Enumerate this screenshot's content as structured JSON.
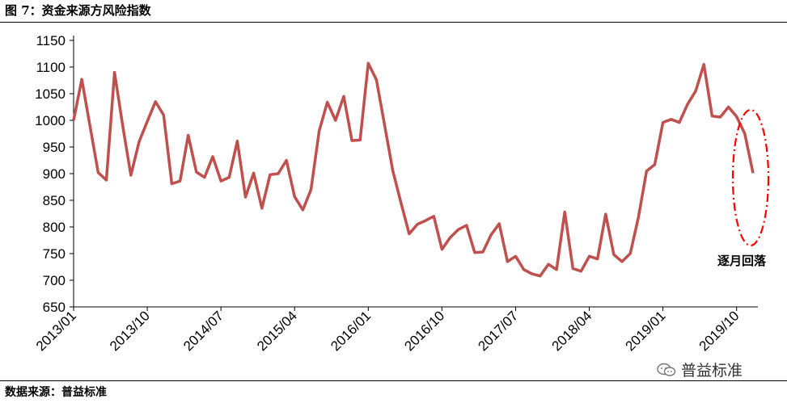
{
  "figure": {
    "title": "图 7：资金来源方风险指数",
    "source": "数据来源：普益标准",
    "watermark": "普益标准"
  },
  "colors": {
    "line": "#c0504d",
    "annotation": "#ff0000",
    "axis": "#000000"
  },
  "chart_data": {
    "type": "line",
    "title": "",
    "xlabel": "",
    "ylabel": "",
    "ylim": [
      650,
      1150
    ],
    "yticks": [
      650,
      700,
      750,
      800,
      850,
      900,
      950,
      1000,
      1050,
      1100,
      1150
    ],
    "xtick_labels": [
      "2013/01",
      "2013/10",
      "2014/07",
      "2015/04",
      "2016/01",
      "2016/10",
      "2017/07",
      "2018/04",
      "2019/01",
      "2019/10"
    ],
    "xtick_positions": [
      0,
      9,
      18,
      27,
      36,
      45,
      54,
      63,
      72,
      81
    ],
    "grid": false,
    "series": [
      {
        "name": "",
        "x_start": "2013/01",
        "frequency": "monthly",
        "values": [
          1000,
          1077,
          990,
          902,
          888,
          1090,
          990,
          897,
          960,
          998,
          1035,
          1010,
          881,
          886,
          972,
          903,
          893,
          932,
          886,
          893,
          961,
          856,
          901,
          835,
          898,
          900,
          925,
          857,
          832,
          870,
          980,
          1034,
          1000,
          1045,
          962,
          963,
          1107,
          1076,
          990,
          905,
          845,
          787,
          805,
          812,
          820,
          758,
          780,
          795,
          803,
          752,
          753,
          785,
          806,
          735,
          745,
          720,
          712,
          708,
          730,
          720,
          828,
          722,
          717,
          745,
          740,
          824,
          748,
          735,
          750,
          818,
          905,
          917,
          996,
          1002,
          996,
          1030,
          1055,
          1105,
          1008,
          1006,
          1025,
          1007,
          975,
          901
        ]
      }
    ],
    "annotations": [
      {
        "text": "逐月回落",
        "target": "last values",
        "shape": "dash-dot ellipse"
      }
    ]
  }
}
